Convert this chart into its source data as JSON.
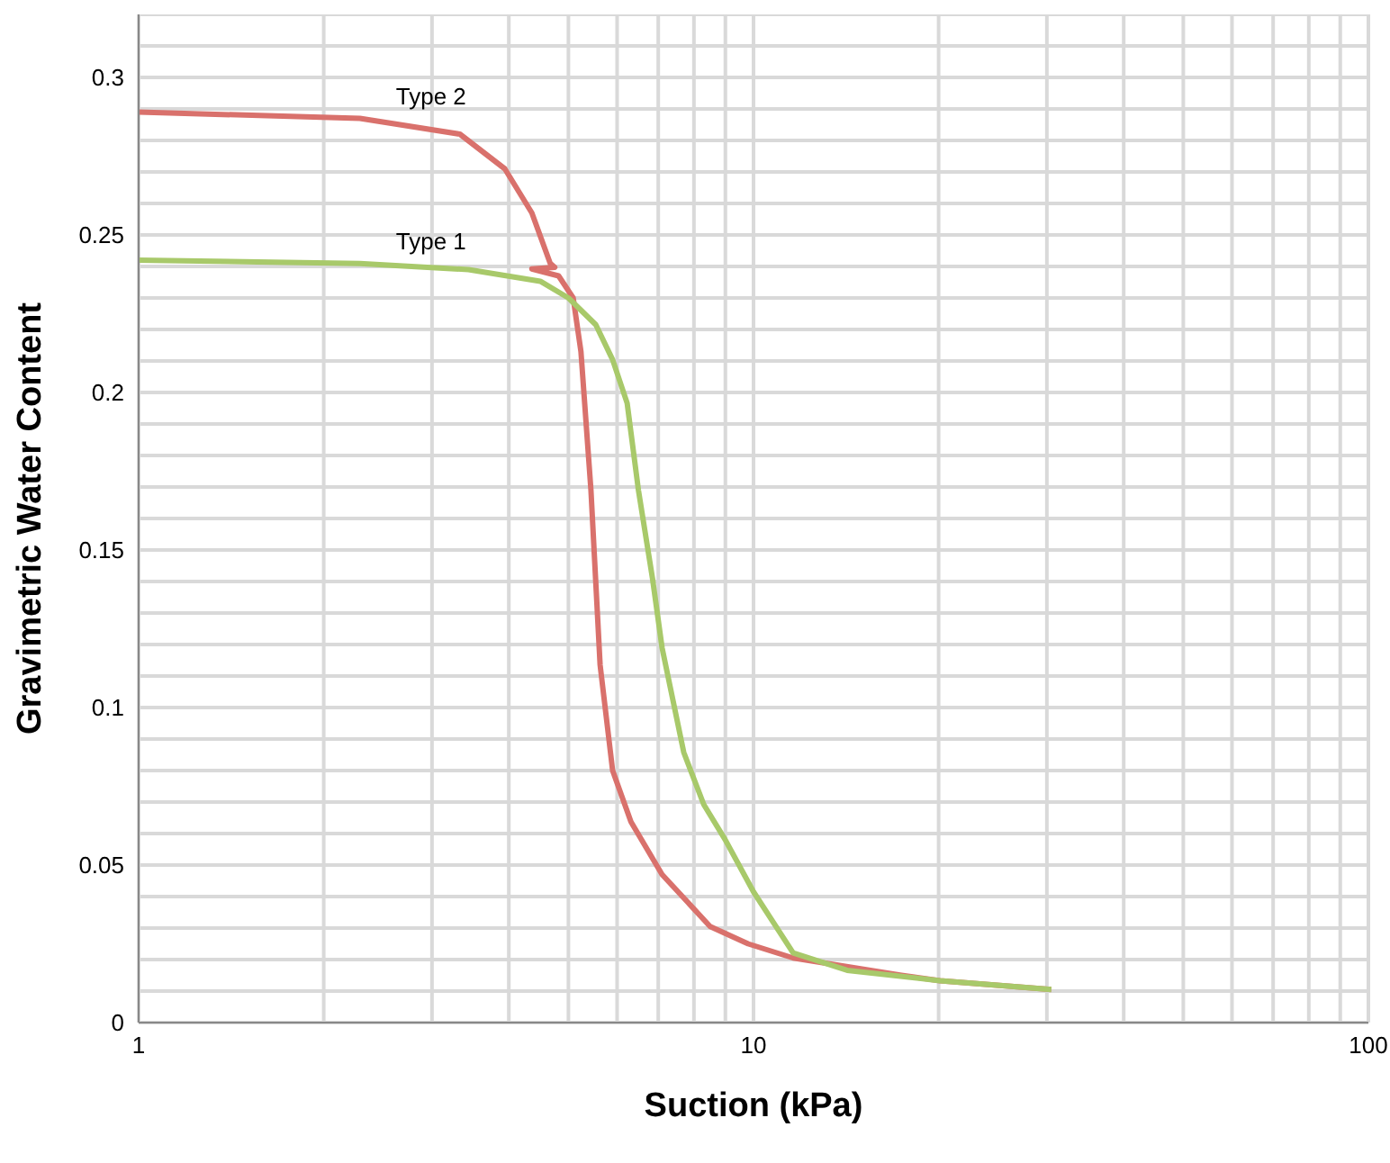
{
  "chart_data": {
    "type": "line",
    "xlabel": "Suction (kPa)",
    "ylabel": "Gravimetric Water Content",
    "log": "x",
    "grid": true,
    "legend": false,
    "marker": "none",
    "line_style": "solid",
    "xlim": [
      1,
      100
    ],
    "xticks": [
      1,
      {
        "value": 2,
        "label": null
      },
      {
        "value": 3,
        "label": null
      },
      {
        "value": 4,
        "label": null
      },
      {
        "value": 5,
        "label": null
      },
      {
        "value": 6,
        "label": null
      },
      {
        "value": 7,
        "label": null
      },
      {
        "value": 8,
        "label": null
      },
      {
        "value": 9,
        "label": null
      },
      10,
      {
        "value": 20,
        "label": null
      },
      {
        "value": 30,
        "label": null
      },
      {
        "value": 40,
        "label": null
      },
      {
        "value": 50,
        "label": null
      },
      {
        "value": 60,
        "label": null
      },
      {
        "value": 70,
        "label": null
      },
      {
        "value": 80,
        "label": null
      },
      {
        "value": 90,
        "label": null
      },
      100
    ],
    "ylim": [
      0,
      0.32
    ],
    "yticks": [
      0,
      {
        "value": 0.01,
        "label": null
      },
      {
        "value": 0.02,
        "label": null
      },
      {
        "value": 0.03,
        "label": null
      },
      {
        "value": 0.04,
        "label": null
      },
      0.05,
      {
        "value": 0.06,
        "label": null
      },
      {
        "value": 0.07,
        "label": null
      },
      {
        "value": 0.08,
        "label": null
      },
      {
        "value": 0.09,
        "label": null
      },
      0.1,
      {
        "value": 0.11,
        "label": null
      },
      {
        "value": 0.12,
        "label": null
      },
      {
        "value": 0.13,
        "label": null
      },
      {
        "value": 0.14,
        "label": null
      },
      0.15,
      {
        "value": 0.16,
        "label": null
      },
      {
        "value": 0.17,
        "label": null
      },
      {
        "value": 0.18,
        "label": null
      },
      {
        "value": 0.19,
        "label": null
      },
      0.2,
      {
        "value": 0.21,
        "label": null
      },
      {
        "value": 0.22,
        "label": null
      },
      {
        "value": 0.23,
        "label": null
      },
      {
        "value": 0.24,
        "label": null
      },
      0.25,
      {
        "value": 0.26,
        "label": null
      },
      {
        "value": 0.27,
        "label": null
      },
      {
        "value": 0.28,
        "label": null
      },
      {
        "value": 0.29,
        "label": null
      },
      0.3,
      {
        "value": 0.31,
        "label": null
      },
      {
        "value": 0.32,
        "label": null
      }
    ],
    "series": [
      {
        "name": "Type 2",
        "color": "#d9716c",
        "x": [
          1,
          2.29,
          3.33,
          3.94,
          4.36,
          4.67,
          4.75,
          4.36,
          4.82,
          5.09,
          5.24,
          5.44,
          5.63,
          5.9,
          6.32,
          7.1,
          8.5,
          9.8,
          11.6,
          17.4,
          20.1,
          30.5
        ],
        "values": [
          0.289,
          0.287,
          0.282,
          0.271,
          0.257,
          0.241,
          0.2397,
          0.2392,
          0.237,
          0.23,
          0.213,
          0.169,
          0.1135,
          0.08,
          0.0637,
          0.047,
          0.0305,
          0.025,
          0.0205,
          0.015,
          0.0133,
          0.0105
        ]
      },
      {
        "name": "Type 1",
        "color": "#a8c96a",
        "x": [
          1,
          2.29,
          3.44,
          4.5,
          5,
          5.54,
          5.9,
          6.23,
          6.5,
          6.85,
          7.1,
          7.7,
          8.3,
          8.99,
          10,
          11.6,
          14.2,
          20.1,
          30.5
        ],
        "values": [
          0.242,
          0.2409,
          0.239,
          0.2353,
          0.23,
          0.2215,
          0.2104,
          0.1966,
          0.1689,
          0.141,
          0.119,
          0.0858,
          0.0692,
          0.0581,
          0.0415,
          0.0221,
          0.0166,
          0.0133,
          0.0105
        ]
      }
    ]
  }
}
